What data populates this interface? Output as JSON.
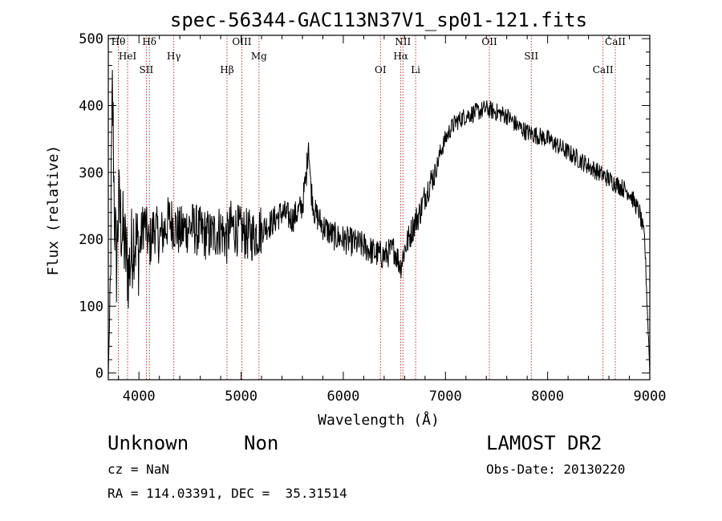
{
  "chart_data": {
    "type": "line",
    "title": "spec-56344-GAC113N37V1_sp01-121.fits",
    "xlabel": "Wavelength (Å)",
    "ylabel": "Flux (relative)",
    "xlim": [
      3700,
      9000
    ],
    "ylim": [
      -10,
      505
    ],
    "x_ticks": [
      4000,
      5000,
      6000,
      7000,
      8000,
      9000
    ],
    "y_ticks": [
      0,
      100,
      200,
      300,
      400,
      500
    ],
    "x_tick_labels": [
      "4000",
      "5000",
      "6000",
      "7000",
      "8000",
      "9000"
    ],
    "y_tick_labels": [
      "0",
      "100",
      "200",
      "300",
      "400",
      "500"
    ],
    "grid": false,
    "series": [
      {
        "x": [
          3700,
          3720,
          3730,
          3740,
          3750,
          3760,
          3780,
          3800,
          3850,
          3900,
          3950,
          4000,
          4050,
          4100,
          4150,
          4200,
          4300,
          4400,
          4500,
          4600,
          4700,
          4800,
          4860,
          4900,
          5000,
          5100,
          5200,
          5300,
          5400,
          5500,
          5600,
          5640,
          5660,
          5680,
          5720,
          5800,
          5900,
          6000,
          6100,
          6200,
          6300,
          6400,
          6500,
          6560,
          6600,
          6650,
          6700,
          6750,
          6800,
          6850,
          6900,
          6950,
          7000,
          7050,
          7100,
          7150,
          7200,
          7300,
          7400,
          7500,
          7600,
          7700,
          7800,
          7900,
          8000,
          8100,
          8200,
          8300,
          8400,
          8500,
          8600,
          8700,
          8800,
          8850,
          8900,
          8950,
          8980,
          9000
        ],
        "y": [
          0,
          120,
          300,
          420,
          350,
          240,
          160,
          250,
          200,
          150,
          210,
          180,
          230,
          190,
          220,
          200,
          230,
          210,
          220,
          210,
          205,
          215,
          200,
          220,
          210,
          205,
          215,
          225,
          240,
          230,
          250,
          300,
          350,
          280,
          240,
          220,
          205,
          200,
          195,
          190,
          180,
          175,
          185,
          160,
          185,
          205,
          225,
          240,
          265,
          285,
          300,
          330,
          350,
          365,
          375,
          380,
          385,
          390,
          395,
          390,
          385,
          370,
          360,
          355,
          350,
          340,
          330,
          320,
          310,
          300,
          290,
          280,
          270,
          255,
          240,
          200,
          80,
          0
        ]
      }
    ],
    "line_markers": [
      {
        "label": "Hθ",
        "x": 3798
      },
      {
        "label": "HeI",
        "x": 3889
      },
      {
        "label": "SII",
        "x": 4072
      },
      {
        "label": "Hδ",
        "x": 4102
      },
      {
        "label": "Hγ",
        "x": 4341
      },
      {
        "label": "Hβ",
        "x": 4862
      },
      {
        "label": "OIII",
        "x": 5007
      },
      {
        "label": "Mg",
        "x": 5175
      },
      {
        "label": "OI",
        "x": 6364
      },
      {
        "label": "NII",
        "x": 6584
      },
      {
        "label": "Hα",
        "x": 6563
      },
      {
        "label": "Li",
        "x": 6708
      },
      {
        "label": "OII",
        "x": 7430
      },
      {
        "label": "SII",
        "x": 7840
      },
      {
        "label": "CaII",
        "x": 8542
      },
      {
        "label": "CaII",
        "x": 8662
      }
    ]
  },
  "info": {
    "class": "Unknown",
    "subclass": "Non",
    "survey": "LAMOST DR2",
    "cz": "cz = NaN",
    "obs_date": "Obs-Date: 20130220",
    "coords": "RA = 114.03391, DEC =  35.31514"
  }
}
